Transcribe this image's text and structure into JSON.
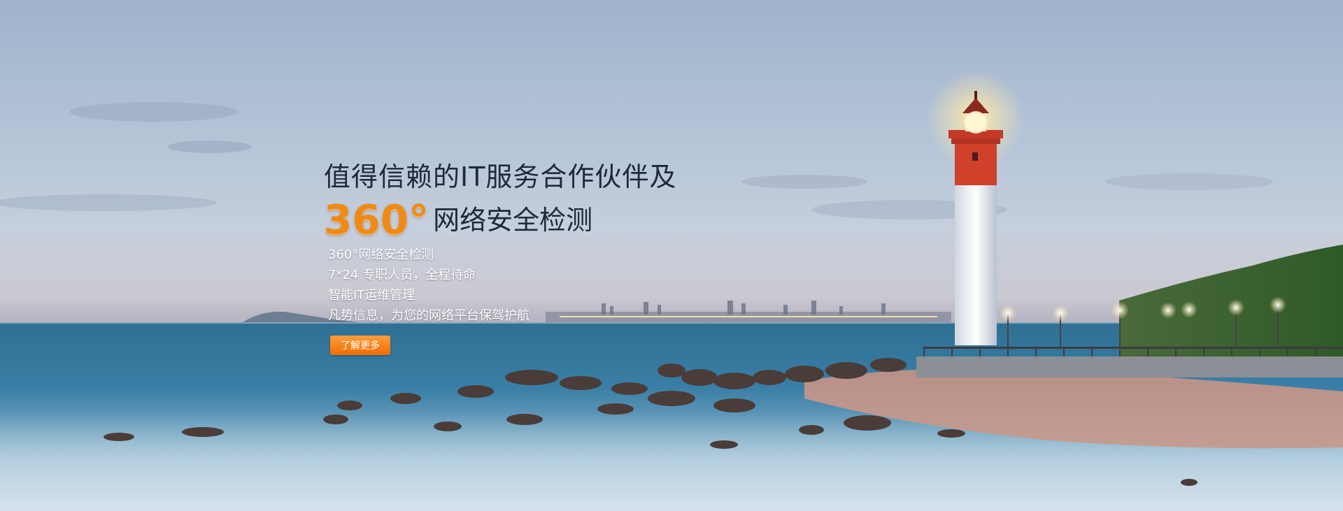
{
  "hero": {
    "title_line1": "值得信赖的IT服务合作伙伴及",
    "title_degree": "360°",
    "title_line2": "网络安全检测",
    "features": [
      "360°网络安全检测",
      "7*24 专职人员，全程待命",
      "智能IT运维管理",
      "凡势信息，为您的网络平台保驾护航"
    ],
    "cta_label": "了解更多"
  },
  "colors": {
    "accent": "#f08a16",
    "button_top": "#ff9d3a",
    "button_bottom": "#f06c00",
    "title_text": "#1e2a3a",
    "lighthouse_red": "#d0402a"
  }
}
